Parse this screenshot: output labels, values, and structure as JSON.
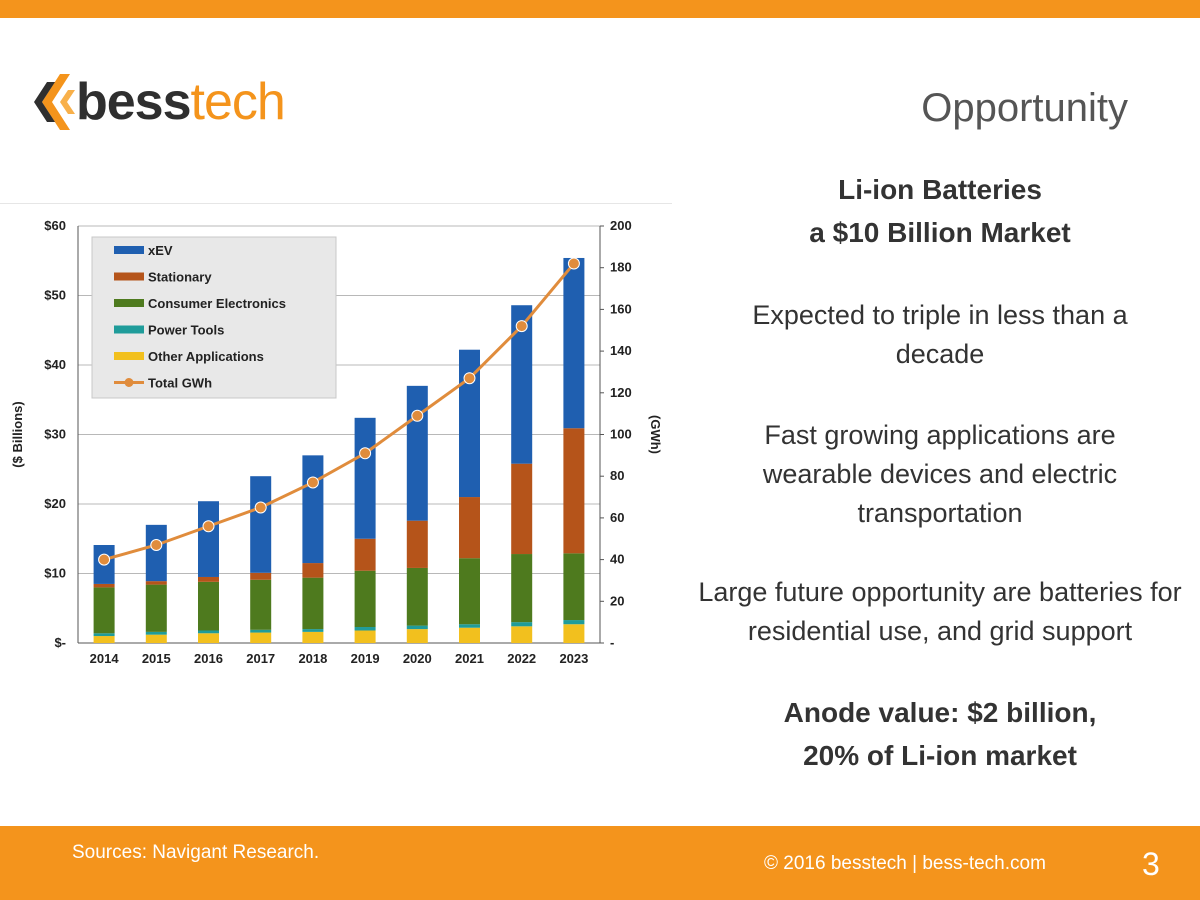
{
  "brand": {
    "logo_part1": "bess",
    "logo_part2": "tech"
  },
  "header": {
    "title": "Opportunity"
  },
  "panel": {
    "headline_line1": "Li-ion Batteries",
    "headline_line2": "a $10 Billion Market",
    "point1": "Expected to triple in less than a decade",
    "point2": "Fast growing applications are wearable devices and electric transportation",
    "point3": "Large future opportunity are batteries for residential use, and grid support",
    "anode_line1": "Anode value: $2 billion,",
    "anode_line2": "20% of Li-ion market"
  },
  "footer": {
    "source": "Sources: Navigant Research.",
    "copyright": "© 2016 besstech | bess-tech.com",
    "page_number": "3"
  },
  "colors": {
    "accent": "#f4941c",
    "xev": "#1f5fb0",
    "stationary": "#b5541a",
    "consumer": "#4e7a1e",
    "power_tools": "#1f9c9a",
    "other": "#f2c01e",
    "total_gwh": "#e08c3c"
  },
  "chart_data": {
    "type": "bar",
    "stacked": true,
    "categories": [
      "2014",
      "2015",
      "2016",
      "2017",
      "2018",
      "2019",
      "2020",
      "2021",
      "2022",
      "2023"
    ],
    "series": [
      {
        "name": "Other Applications",
        "axis": "left",
        "color": "#f2c01e",
        "values": [
          1.0,
          1.2,
          1.4,
          1.5,
          1.6,
          1.8,
          2.0,
          2.2,
          2.4,
          2.7
        ]
      },
      {
        "name": "Power Tools",
        "axis": "left",
        "color": "#1f9c9a",
        "values": [
          0.4,
          0.4,
          0.4,
          0.4,
          0.4,
          0.5,
          0.5,
          0.5,
          0.6,
          0.6
        ]
      },
      {
        "name": "Consumer Electronics",
        "axis": "left",
        "color": "#4e7a1e",
        "values": [
          6.6,
          6.8,
          7.0,
          7.2,
          7.4,
          8.1,
          8.3,
          9.5,
          9.8,
          9.6
        ]
      },
      {
        "name": "Stationary",
        "axis": "left",
        "color": "#b5541a",
        "values": [
          0.5,
          0.5,
          0.7,
          1.0,
          2.1,
          4.6,
          6.8,
          8.8,
          13.0,
          18.0
        ]
      },
      {
        "name": "xEV",
        "axis": "left",
        "color": "#1f5fb0",
        "values": [
          5.6,
          8.1,
          10.9,
          13.9,
          15.5,
          17.4,
          19.4,
          21.2,
          22.8,
          24.5
        ]
      },
      {
        "name": "Total GWh",
        "type": "line",
        "axis": "right",
        "color": "#e08c3c",
        "values": [
          40,
          47,
          56,
          65,
          77,
          91,
          109,
          127,
          152,
          182
        ]
      }
    ],
    "xlabel": "",
    "ylabel": "($ Billions)",
    "y2label": "(GWh)",
    "ylim": [
      0,
      60
    ],
    "y2lim": [
      0,
      200
    ],
    "yticks": [
      0,
      10,
      20,
      30,
      40,
      50,
      60
    ],
    "ytick_labels": [
      "$-",
      "$10",
      "$20",
      "$30",
      "$40",
      "$50",
      "$60"
    ],
    "y2ticks": [
      0,
      20,
      40,
      60,
      80,
      100,
      120,
      140,
      160,
      180,
      200
    ],
    "y2tick_labels": [
      "-",
      "20",
      "40",
      "60",
      "80",
      "100",
      "120",
      "140",
      "160",
      "180",
      "200"
    ],
    "legend": {
      "placement": "top-left",
      "entries": [
        "xEV",
        "Stationary",
        "Consumer Electronics",
        "Power Tools",
        "Other Applications",
        "Total GWh"
      ]
    },
    "grid": true
  }
}
